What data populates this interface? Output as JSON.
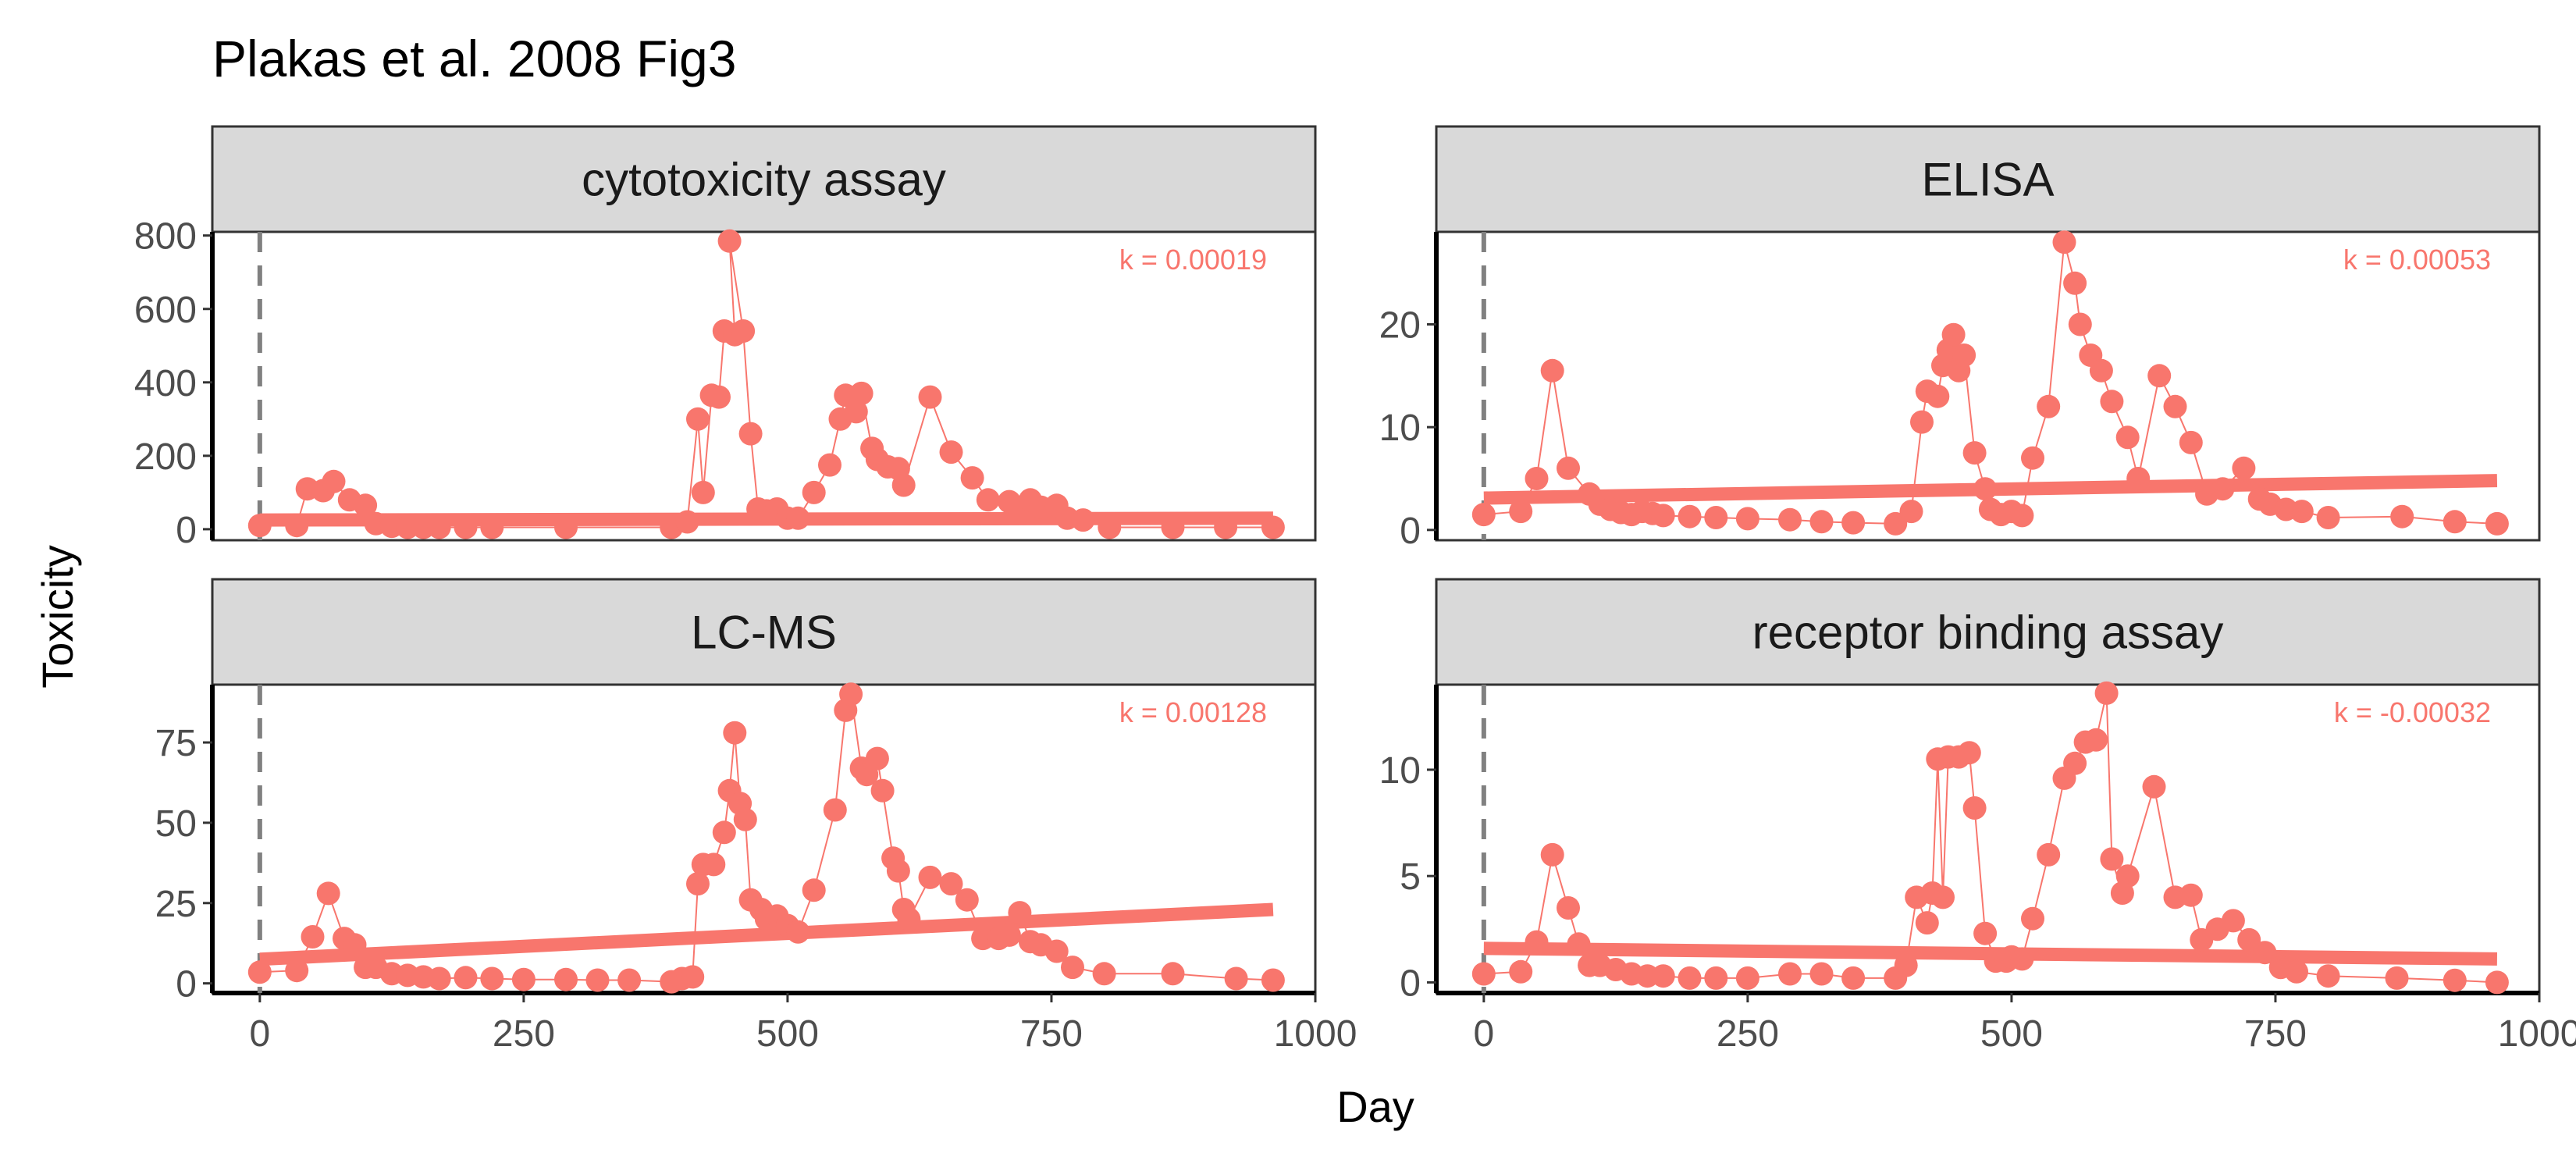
{
  "title": "Plakas et al. 2008 Fig3",
  "chart_data": {
    "type": "scatter",
    "title": "Plakas et al. 2008 Fig3",
    "xlabel": "Day",
    "ylabel": "Toxicity",
    "xlim": [
      -45,
      1000
    ],
    "x_ticks": [
      0,
      250,
      500,
      750,
      1000
    ],
    "vline_x": 0,
    "color": "#F8766D",
    "facets": [
      {
        "name": "cytotoxicity assay",
        "k_label": "k = 0.00019",
        "ylim": [
          -30,
          810
        ],
        "y_ticks": [
          0,
          200,
          400,
          600,
          800
        ],
        "fit": [
          [
            0,
            25
          ],
          [
            960,
            30
          ]
        ],
        "points": [
          [
            0,
            10
          ],
          [
            35,
            10
          ],
          [
            45,
            110
          ],
          [
            60,
            105
          ],
          [
            70,
            130
          ],
          [
            85,
            80
          ],
          [
            100,
            65
          ],
          [
            110,
            15
          ],
          [
            125,
            8
          ],
          [
            140,
            5
          ],
          [
            155,
            5
          ],
          [
            170,
            5
          ],
          [
            195,
            5
          ],
          [
            220,
            5
          ],
          [
            290,
            5
          ],
          [
            390,
            5
          ],
          [
            405,
            20
          ],
          [
            415,
            300
          ],
          [
            420,
            100
          ],
          [
            428,
            365
          ],
          [
            435,
            360
          ],
          [
            440,
            540
          ],
          [
            450,
            530
          ],
          [
            445,
            785
          ],
          [
            458,
            540
          ],
          [
            465,
            260
          ],
          [
            472,
            55
          ],
          [
            480,
            50
          ],
          [
            490,
            55
          ],
          [
            500,
            30
          ],
          [
            510,
            30
          ],
          [
            525,
            100
          ],
          [
            540,
            175
          ],
          [
            550,
            300
          ],
          [
            555,
            365
          ],
          [
            565,
            320
          ],
          [
            570,
            370
          ],
          [
            580,
            220
          ],
          [
            585,
            190
          ],
          [
            595,
            170
          ],
          [
            605,
            165
          ],
          [
            610,
            120
          ],
          [
            635,
            360
          ],
          [
            655,
            210
          ],
          [
            675,
            140
          ],
          [
            690,
            80
          ],
          [
            710,
            75
          ],
          [
            720,
            50
          ],
          [
            730,
            80
          ],
          [
            740,
            60
          ],
          [
            755,
            65
          ],
          [
            765,
            30
          ],
          [
            780,
            25
          ],
          [
            805,
            5
          ],
          [
            865,
            5
          ],
          [
            915,
            5
          ],
          [
            960,
            5
          ]
        ]
      },
      {
        "name": "ELISA",
        "k_label": "k = 0.00053",
        "ylim": [
          -1,
          29
        ],
        "y_ticks": [
          0,
          10,
          20
        ],
        "fit": [
          [
            0,
            3.1
          ],
          [
            960,
            4.8
          ]
        ],
        "points": [
          [
            0,
            1.5
          ],
          [
            35,
            1.8
          ],
          [
            50,
            5
          ],
          [
            65,
            15.5
          ],
          [
            80,
            6
          ],
          [
            100,
            3.5
          ],
          [
            110,
            2.5
          ],
          [
            120,
            2
          ],
          [
            130,
            1.7
          ],
          [
            140,
            1.5
          ],
          [
            150,
            1.8
          ],
          [
            160,
            1.6
          ],
          [
            170,
            1.4
          ],
          [
            195,
            1.3
          ],
          [
            220,
            1.2
          ],
          [
            250,
            1.1
          ],
          [
            290,
            1
          ],
          [
            320,
            0.8
          ],
          [
            350,
            0.7
          ],
          [
            390,
            0.6
          ],
          [
            405,
            1.8
          ],
          [
            415,
            10.5
          ],
          [
            420,
            13.5
          ],
          [
            430,
            13
          ],
          [
            435,
            16
          ],
          [
            440,
            17.5
          ],
          [
            445,
            19
          ],
          [
            450,
            15.5
          ],
          [
            455,
            17
          ],
          [
            465,
            7.5
          ],
          [
            475,
            4
          ],
          [
            480,
            2
          ],
          [
            490,
            1.5
          ],
          [
            500,
            1.8
          ],
          [
            510,
            1.4
          ],
          [
            520,
            7
          ],
          [
            535,
            12
          ],
          [
            550,
            28
          ],
          [
            560,
            24
          ],
          [
            565,
            20
          ],
          [
            575,
            17
          ],
          [
            585,
            15.5
          ],
          [
            595,
            12.5
          ],
          [
            610,
            9
          ],
          [
            620,
            5
          ],
          [
            640,
            15
          ],
          [
            655,
            12
          ],
          [
            670,
            8.5
          ],
          [
            685,
            3.5
          ],
          [
            700,
            4
          ],
          [
            720,
            6
          ],
          [
            735,
            3
          ],
          [
            745,
            2.5
          ],
          [
            760,
            2
          ],
          [
            775,
            1.8
          ],
          [
            800,
            1.2
          ],
          [
            870,
            1.3
          ],
          [
            920,
            0.8
          ],
          [
            960,
            0.6
          ]
        ]
      },
      {
        "name": "LC-MS",
        "k_label": "k = 0.00128",
        "ylim": [
          -3,
          93
        ],
        "y_ticks": [
          0,
          25,
          50,
          75
        ],
        "fit": [
          [
            0,
            7.5
          ],
          [
            960,
            23
          ]
        ],
        "points": [
          [
            0,
            3.5
          ],
          [
            35,
            4
          ],
          [
            50,
            14.5
          ],
          [
            65,
            28
          ],
          [
            80,
            14
          ],
          [
            90,
            12
          ],
          [
            100,
            5
          ],
          [
            110,
            5
          ],
          [
            125,
            3
          ],
          [
            140,
            2.5
          ],
          [
            155,
            2
          ],
          [
            170,
            1.5
          ],
          [
            195,
            1.8
          ],
          [
            220,
            1.5
          ],
          [
            250,
            1.2
          ],
          [
            290,
            1.2
          ],
          [
            320,
            1
          ],
          [
            350,
            1
          ],
          [
            390,
            0.5
          ],
          [
            400,
            1.5
          ],
          [
            410,
            2
          ],
          [
            415,
            31
          ],
          [
            420,
            37
          ],
          [
            430,
            37
          ],
          [
            440,
            47
          ],
          [
            445,
            60
          ],
          [
            450,
            78
          ],
          [
            455,
            56
          ],
          [
            460,
            51
          ],
          [
            465,
            26
          ],
          [
            475,
            23
          ],
          [
            480,
            20
          ],
          [
            490,
            21
          ],
          [
            500,
            18
          ],
          [
            510,
            16
          ],
          [
            525,
            29
          ],
          [
            545,
            54
          ],
          [
            555,
            85
          ],
          [
            560,
            90
          ],
          [
            570,
            67
          ],
          [
            575,
            65
          ],
          [
            585,
            70
          ],
          [
            590,
            60
          ],
          [
            600,
            39
          ],
          [
            605,
            35
          ],
          [
            610,
            23
          ],
          [
            615,
            20
          ],
          [
            635,
            33
          ],
          [
            655,
            31
          ],
          [
            670,
            26
          ],
          [
            685,
            14
          ],
          [
            700,
            14
          ],
          [
            710,
            15
          ],
          [
            720,
            22
          ],
          [
            730,
            13
          ],
          [
            740,
            12
          ],
          [
            755,
            10
          ],
          [
            770,
            5
          ],
          [
            800,
            3
          ],
          [
            865,
            3
          ],
          [
            925,
            1.5
          ],
          [
            960,
            1
          ]
        ]
      },
      {
        "name": "receptor binding assay",
        "k_label": "k = -0.00032",
        "ylim": [
          -0.5,
          14
        ],
        "y_ticks": [
          0,
          5,
          10
        ],
        "fit": [
          [
            0,
            1.6
          ],
          [
            960,
            1.1
          ]
        ],
        "points": [
          [
            0,
            0.4
          ],
          [
            35,
            0.5
          ],
          [
            50,
            1.9
          ],
          [
            65,
            6
          ],
          [
            80,
            3.5
          ],
          [
            90,
            1.8
          ],
          [
            100,
            0.8
          ],
          [
            110,
            0.8
          ],
          [
            125,
            0.6
          ],
          [
            140,
            0.4
          ],
          [
            155,
            0.3
          ],
          [
            170,
            0.3
          ],
          [
            195,
            0.2
          ],
          [
            220,
            0.2
          ],
          [
            250,
            0.2
          ],
          [
            290,
            0.4
          ],
          [
            320,
            0.4
          ],
          [
            350,
            0.2
          ],
          [
            390,
            0.2
          ],
          [
            400,
            0.8
          ],
          [
            410,
            4
          ],
          [
            420,
            2.8
          ],
          [
            425,
            4.2
          ],
          [
            430,
            10.5
          ],
          [
            435,
            4
          ],
          [
            440,
            10.6
          ],
          [
            450,
            10.6
          ],
          [
            460,
            10.8
          ],
          [
            465,
            8.2
          ],
          [
            475,
            2.3
          ],
          [
            485,
            1
          ],
          [
            495,
            1
          ],
          [
            500,
            1.2
          ],
          [
            510,
            1.1
          ],
          [
            520,
            3
          ],
          [
            535,
            6
          ],
          [
            550,
            9.6
          ],
          [
            560,
            10.3
          ],
          [
            570,
            11.3
          ],
          [
            580,
            11.4
          ],
          [
            590,
            13.6
          ],
          [
            595,
            5.8
          ],
          [
            605,
            4.2
          ],
          [
            610,
            5
          ],
          [
            635,
            9.2
          ],
          [
            655,
            4
          ],
          [
            670,
            4.1
          ],
          [
            680,
            2
          ],
          [
            695,
            2.5
          ],
          [
            710,
            2.9
          ],
          [
            725,
            2
          ],
          [
            740,
            1.4
          ],
          [
            755,
            0.7
          ],
          [
            770,
            0.5
          ],
          [
            800,
            0.3
          ],
          [
            865,
            0.2
          ],
          [
            920,
            0.1
          ],
          [
            960,
            0
          ]
        ]
      }
    ]
  }
}
